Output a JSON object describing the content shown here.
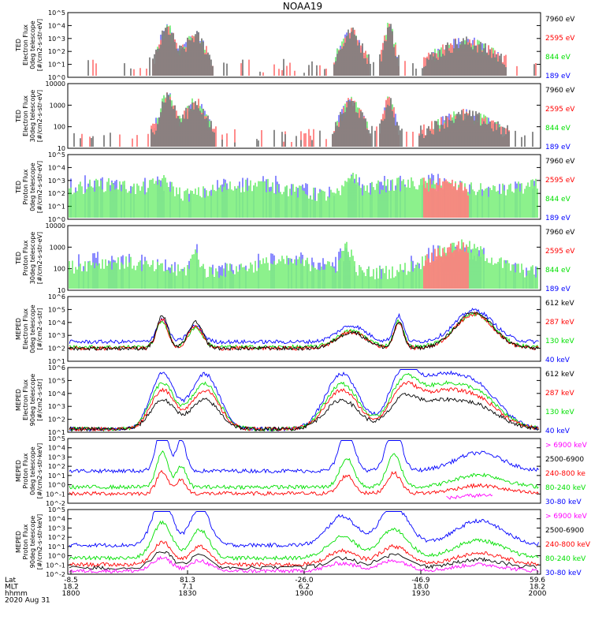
{
  "title": "NOAA19",
  "colors": {
    "black": "#000000",
    "red": "#ff0000",
    "green": "#00e000",
    "blue": "#0000ff",
    "magenta": "#ff00ff"
  },
  "date_label": "2020 Aug 31",
  "axis": {
    "row_labels": [
      "Lat",
      "MLT",
      "hhmm"
    ],
    "ticks": [
      {
        "lat": "-8.5",
        "mlt": "18.2",
        "hhmm": "1800"
      },
      {
        "lat": "81.3",
        "mlt": "7.1",
        "hhmm": "1830"
      },
      {
        "lat": "-26.0",
        "mlt": "6.2",
        "hhmm": "1900"
      },
      {
        "lat": "-46.9",
        "mlt": "18.0",
        "hhmm": "1930"
      },
      {
        "lat": "59.6",
        "mlt": "18.2",
        "hhmm": "2000"
      }
    ]
  },
  "chart_data": [
    {
      "type": "line",
      "ylabel": [
        "TED",
        "Electron Flux",
        "0deg telescope",
        "[#/cm2-s-str-eV]"
      ],
      "yticks": [
        "10^0",
        "10^1",
        "10^2",
        "10^3",
        "10^4",
        "10^5"
      ],
      "legend": [
        {
          "label": "7960 eV",
          "color": "#000000"
        },
        {
          "label": "2595 eV",
          "color": "#ff0000"
        },
        {
          "label": "844 eV",
          "color": "#00e000"
        },
        {
          "label": "189 eV",
          "color": "#0000ff"
        }
      ]
    },
    {
      "type": "line",
      "ylabel": [
        "TED",
        "Electron Flux",
        "30deg telescope",
        "[#/cm2-s-str-eV]"
      ],
      "yticks": [
        "10",
        "100",
        "1000",
        "10000"
      ],
      "legend": [
        {
          "label": "7960 eV",
          "color": "#000000"
        },
        {
          "label": "2595 eV",
          "color": "#ff0000"
        },
        {
          "label": "844 eV",
          "color": "#00e000"
        },
        {
          "label": "189 eV",
          "color": "#0000ff"
        }
      ]
    },
    {
      "type": "line",
      "ylabel": [
        "TED",
        "Proton Flux",
        "0deg telescope",
        "[#/cm2-s-str-eV]"
      ],
      "yticks": [
        "10^0",
        "10^1",
        "10^2",
        "10^3",
        "10^4",
        "10^5"
      ],
      "legend": [
        {
          "label": "7960 eV",
          "color": "#000000"
        },
        {
          "label": "2595 eV",
          "color": "#ff0000"
        },
        {
          "label": "844 eV",
          "color": "#00e000"
        },
        {
          "label": "189 eV",
          "color": "#0000ff"
        }
      ]
    },
    {
      "type": "line",
      "ylabel": [
        "TED",
        "Proton Flux",
        "30deg telescope",
        "[#/cm2-s-str-eV]"
      ],
      "yticks": [
        "10",
        "100",
        "1000",
        "10000"
      ],
      "legend": [
        {
          "label": "7960 eV",
          "color": "#000000"
        },
        {
          "label": "2595 eV",
          "color": "#ff0000"
        },
        {
          "label": "844 eV",
          "color": "#00e000"
        },
        {
          "label": "189 eV",
          "color": "#0000ff"
        }
      ]
    },
    {
      "type": "line",
      "ylabel": [
        "MEPED",
        "Electron Flux",
        "0deg telescope",
        "[#/cm2-s-str]"
      ],
      "yticks": [
        "10^1",
        "10^2",
        "10^3",
        "10^4",
        "10^5",
        "10^6"
      ],
      "legend": [
        {
          "label": "612 keV",
          "color": "#000000"
        },
        {
          "label": "287 keV",
          "color": "#ff0000"
        },
        {
          "label": "130 keV",
          "color": "#00e000"
        },
        {
          "label": "40 keV",
          "color": "#0000ff"
        }
      ]
    },
    {
      "type": "line",
      "ylabel": [
        "MEPED",
        "Electron Flux",
        "90deg telescope",
        "[#/cm2-s-str]"
      ],
      "yticks": [
        "10^1",
        "10^2",
        "10^3",
        "10^4",
        "10^5",
        "10^6"
      ],
      "legend": [
        {
          "label": "612 keV",
          "color": "#000000"
        },
        {
          "label": "287 keV",
          "color": "#ff0000"
        },
        {
          "label": "130 keV",
          "color": "#00e000"
        },
        {
          "label": "40 keV",
          "color": "#0000ff"
        }
      ]
    },
    {
      "type": "line",
      "ylabel": [
        "MEPED",
        "Proton Flux",
        "0deg telescope",
        "[#/cm2-s-str-keV]"
      ],
      "yticks": [
        "10^-2",
        "10^-1",
        "10^0",
        "10^1",
        "10^2",
        "10^3",
        "10^4",
        "10^5"
      ],
      "legend": [
        {
          "label": "> 6900 keV",
          "color": "#ff00ff"
        },
        {
          "label": "2500-6900",
          "color": "#000000"
        },
        {
          "label": "240-800 ke",
          "color": "#ff0000"
        },
        {
          "label": "80-240 keV",
          "color": "#00e000"
        },
        {
          "label": "30-80 keV",
          "color": "#0000ff"
        }
      ]
    },
    {
      "type": "line",
      "ylabel": [
        "MEPED",
        "Proton Flux",
        "90deg telescope",
        "[#/cm2-s-str-keV]"
      ],
      "yticks": [
        "10^-2",
        "10^-1",
        "10^0",
        "10^1",
        "10^2",
        "10^3",
        "10^4",
        "10^5"
      ],
      "legend": [
        {
          "label": "> 6900 keV",
          "color": "#ff00ff"
        },
        {
          "label": "2500-6900",
          "color": "#000000"
        },
        {
          "label": "240-800 keV",
          "color": "#ff0000"
        },
        {
          "label": "80-240 keV",
          "color": "#00e000"
        },
        {
          "label": "30-80 keV",
          "color": "#0000ff"
        }
      ]
    }
  ]
}
